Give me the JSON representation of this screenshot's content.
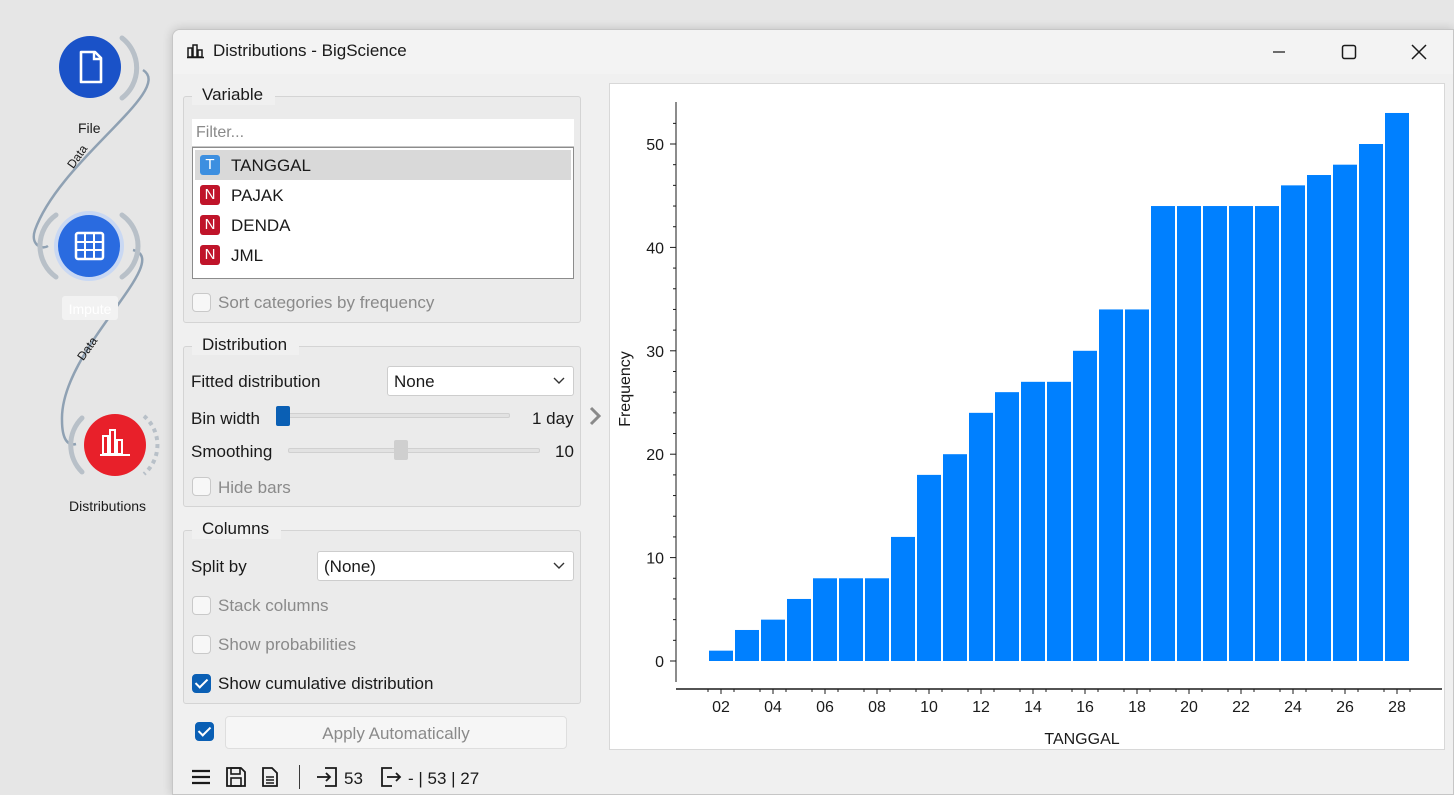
{
  "canvas": {
    "nodes": [
      {
        "label": "File",
        "color": "#1a52c8"
      },
      {
        "label": "Impute",
        "color": "#2a6be0"
      },
      {
        "label": "Distributions",
        "color": "#e8202a"
      }
    ],
    "links": [
      {
        "label": "Data"
      },
      {
        "label": "Data"
      }
    ]
  },
  "window": {
    "title": "Distributions - BigScience"
  },
  "variable_group": {
    "title": "Variable",
    "filter_placeholder": "Filter...",
    "items": [
      {
        "badge": "T",
        "badge_color": "#3d8fe0",
        "name": "TANGGAL",
        "selected": true
      },
      {
        "badge": "N",
        "badge_color": "#c0142a",
        "name": "PAJAK"
      },
      {
        "badge": "N",
        "badge_color": "#c0142a",
        "name": "DENDA"
      },
      {
        "badge": "N",
        "badge_color": "#c0142a",
        "name": "JML"
      }
    ],
    "sort_label": "Sort categories by frequency"
  },
  "distribution_group": {
    "title": "Distribution",
    "fitted_label": "Fitted distribution",
    "fitted_value": "None",
    "bin_width_label": "Bin width",
    "bin_width_value": "1 day",
    "bin_width_level": 0.0,
    "smoothing_label": "Smoothing",
    "smoothing_value": "10",
    "smoothing_level": 0.45,
    "hide_bars_label": "Hide bars"
  },
  "columns_group": {
    "title": "Columns",
    "split_label": "Split by",
    "split_value": "(None)",
    "stack_label": "Stack columns",
    "probabilities_label": "Show probabilities",
    "cumulative_label": "Show cumulative distribution",
    "cumulative_checked": true
  },
  "apply": {
    "label": "Apply Automatically",
    "checked": true
  },
  "status": {
    "input_count": "53",
    "output_text": "- | 53 | 27"
  },
  "colors": {
    "accent": "#0a5fb4",
    "bar": "#0080ff"
  },
  "chart_data": {
    "type": "bar",
    "xlabel": "TANGGAL",
    "ylabel": "Frequency",
    "ylim": [
      0,
      53
    ],
    "yticks": [
      0,
      10,
      20,
      30,
      40,
      50
    ],
    "xtick_labels": [
      "02",
      "04",
      "06",
      "08",
      "10",
      "12",
      "14",
      "16",
      "18",
      "20",
      "22",
      "24",
      "26",
      "28"
    ],
    "categories": [
      "02",
      "03",
      "04",
      "05",
      "06",
      "07",
      "08",
      "09",
      "10",
      "11",
      "12",
      "13",
      "14",
      "15",
      "16",
      "17",
      "18",
      "19",
      "20",
      "21",
      "22",
      "23",
      "24",
      "25",
      "26",
      "27",
      "28"
    ],
    "values": [
      1,
      3,
      4,
      6,
      8,
      8,
      8,
      12,
      18,
      20,
      24,
      26,
      27,
      27,
      30,
      34,
      34,
      44,
      44,
      44,
      44,
      44,
      46,
      47,
      48,
      50,
      53
    ],
    "grid": false,
    "legend": "none"
  }
}
